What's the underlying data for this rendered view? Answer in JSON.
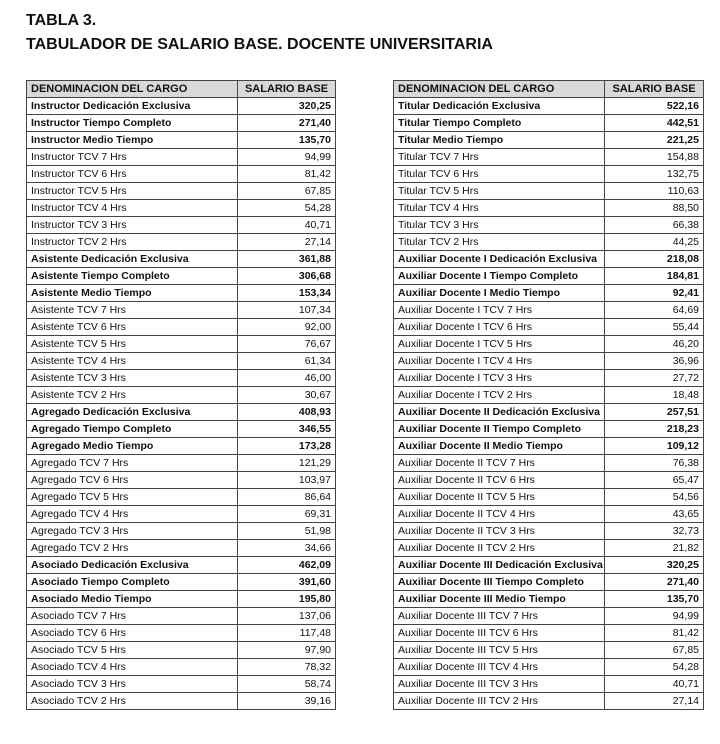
{
  "header": {
    "label": "TABLA 3.",
    "title": "TABULADOR DE SALARIO BASE. DOCENTE UNIVERSITARIA"
  },
  "tables": [
    {
      "columns": [
        "DENOMINACION DEL CARGO",
        "SALARIO BASE"
      ],
      "rows": [
        [
          "Instructor Dedicación Exclusiva",
          "320,25"
        ],
        [
          "Instructor Tiempo Completo",
          "271,40"
        ],
        [
          "Instructor Medio Tiempo",
          "135,70"
        ],
        [
          "Instructor TCV 7 Hrs",
          "94,99"
        ],
        [
          "Instructor TCV 6 Hrs",
          "81,42"
        ],
        [
          "Instructor TCV 5 Hrs",
          "67,85"
        ],
        [
          "Instructor TCV 4 Hrs",
          "54,28"
        ],
        [
          "Instructor TCV 3 Hrs",
          "40,71"
        ],
        [
          "Instructor TCV 2 Hrs",
          "27,14"
        ],
        [
          "Asistente Dedicación Exclusiva",
          "361,88"
        ],
        [
          "Asistente Tiempo Completo",
          "306,68"
        ],
        [
          "Asistente Medio Tiempo",
          "153,34"
        ],
        [
          "Asistente TCV 7 Hrs",
          "107,34"
        ],
        [
          "Asistente TCV 6 Hrs",
          "92,00"
        ],
        [
          "Asistente TCV 5 Hrs",
          "76,67"
        ],
        [
          "Asistente TCV 4 Hrs",
          "61,34"
        ],
        [
          "Asistente TCV 3 Hrs",
          "46,00"
        ],
        [
          "Asistente TCV 2 Hrs",
          "30,67"
        ],
        [
          "Agregado Dedicación Exclusiva",
          "408,93"
        ],
        [
          "Agregado Tiempo Completo",
          "346,55"
        ],
        [
          "Agregado Medio Tiempo",
          "173,28"
        ],
        [
          "Agregado TCV 7 Hrs",
          "121,29"
        ],
        [
          "Agregado TCV 6 Hrs",
          "103,97"
        ],
        [
          "Agregado TCV 5 Hrs",
          "86,64"
        ],
        [
          "Agregado TCV 4 Hrs",
          "69,31"
        ],
        [
          "Agregado TCV 3 Hrs",
          "51,98"
        ],
        [
          "Agregado TCV 2 Hrs",
          "34,66"
        ],
        [
          "Asociado Dedicación Exclusiva",
          "462,09"
        ],
        [
          "Asociado Tiempo Completo",
          "391,60"
        ],
        [
          "Asociado Medio Tiempo",
          "195,80"
        ],
        [
          "Asociado TCV 7 Hrs",
          "137,06"
        ],
        [
          "Asociado TCV 6 Hrs",
          "117,48"
        ],
        [
          "Asociado TCV 5 Hrs",
          "97,90"
        ],
        [
          "Asociado TCV 4 Hrs",
          "78,32"
        ],
        [
          "Asociado TCV 3 Hrs",
          "58,74"
        ],
        [
          "Asociado TCV 2 Hrs",
          "39,16"
        ]
      ]
    },
    {
      "columns": [
        "DENOMINACION DEL CARGO",
        "SALARIO BASE"
      ],
      "rows": [
        [
          "Titular Dedicación Exclusiva",
          "522,16"
        ],
        [
          "Titular Tiempo Completo",
          "442,51"
        ],
        [
          "Titular Medio Tiempo",
          "221,25"
        ],
        [
          "Titular TCV 7 Hrs",
          "154,88"
        ],
        [
          "Titular TCV 6 Hrs",
          "132,75"
        ],
        [
          "Titular TCV 5 Hrs",
          "110,63"
        ],
        [
          "Titular TCV 4 Hrs",
          "88,50"
        ],
        [
          "Titular TCV 3 Hrs",
          "66,38"
        ],
        [
          "Titular TCV 2 Hrs",
          "44,25"
        ],
        [
          "Auxiliar Docente I Dedicación Exclusiva",
          "218,08"
        ],
        [
          "Auxiliar Docente I Tiempo Completo",
          "184,81"
        ],
        [
          "Auxiliar Docente I Medio Tiempo",
          "92,41"
        ],
        [
          "Auxiliar Docente I TCV 7 Hrs",
          "64,69"
        ],
        [
          "Auxiliar Docente I TCV 6 Hrs",
          "55,44"
        ],
        [
          "Auxiliar Docente I TCV 5 Hrs",
          "46,20"
        ],
        [
          "Auxiliar Docente I TCV 4 Hrs",
          "36,96"
        ],
        [
          "Auxiliar Docente I TCV 3 Hrs",
          "27,72"
        ],
        [
          "Auxiliar Docente I TCV 2 Hrs",
          "18,48"
        ],
        [
          "Auxiliar Docente II Dedicación Exclusiva",
          "257,51"
        ],
        [
          "Auxiliar Docente II Tiempo Completo",
          "218,23"
        ],
        [
          "Auxiliar Docente II Medio Tiempo",
          "109,12"
        ],
        [
          "Auxiliar Docente II TCV 7 Hrs",
          "76,38"
        ],
        [
          "Auxiliar Docente II TCV 6 Hrs",
          "65,47"
        ],
        [
          "Auxiliar Docente II TCV 5 Hrs",
          "54,56"
        ],
        [
          "Auxiliar Docente II TCV 4 Hrs",
          "43,65"
        ],
        [
          "Auxiliar Docente II TCV 3 Hrs",
          "32,73"
        ],
        [
          "Auxiliar Docente II TCV 2 Hrs",
          "21,82"
        ],
        [
          "Auxiliar Docente III Dedicación Exclusiva",
          "320,25"
        ],
        [
          "Auxiliar Docente III Tiempo Completo",
          "271,40"
        ],
        [
          "Auxiliar Docente III Medio Tiempo",
          "135,70"
        ],
        [
          "Auxiliar Docente III TCV 7 Hrs",
          "94,99"
        ],
        [
          "Auxiliar Docente III TCV 6 Hrs",
          "81,42"
        ],
        [
          "Auxiliar Docente III TCV 5 Hrs",
          "67,85"
        ],
        [
          "Auxiliar Docente III TCV 4 Hrs",
          "54,28"
        ],
        [
          "Auxiliar Docente III TCV 3 Hrs",
          "40,71"
        ],
        [
          "Auxiliar Docente III TCV 2 Hrs",
          "27,14"
        ]
      ]
    }
  ]
}
